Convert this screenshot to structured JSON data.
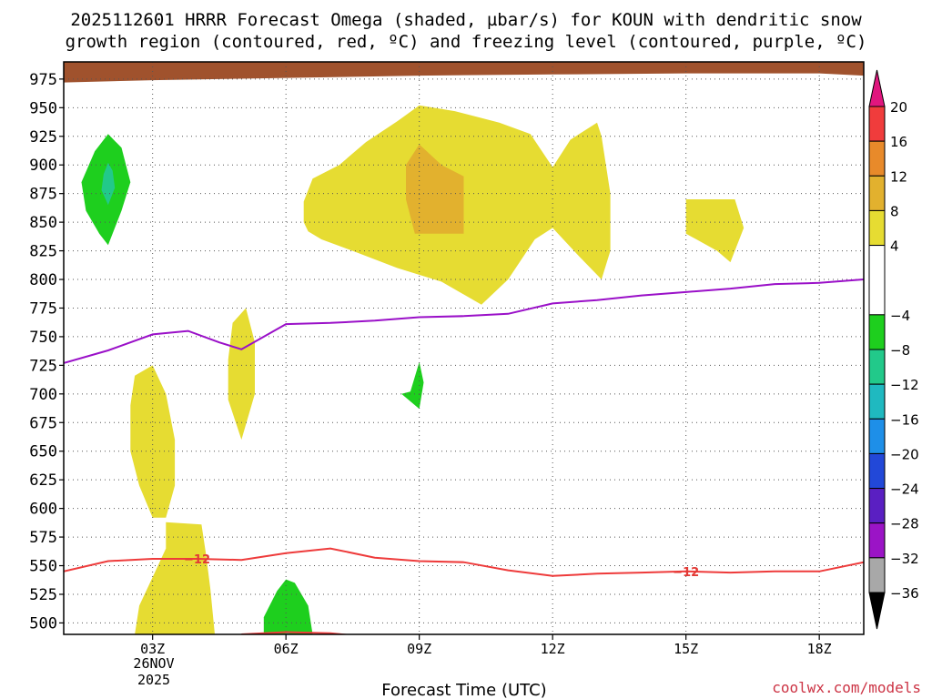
{
  "chart_data": {
    "type": "contour",
    "title_line1": "2025112601 HRRR Forecast Omega (shaded, µbar/s) for KOUN with dendritic snow",
    "title_line2": "growth region (contoured, red, ºC) and freezing level (contoured, purple, ºC)",
    "xlabel": "Forecast Time (UTC)",
    "credit": "coolwx.com/models",
    "x_unit": "hours since 00Z 26 Nov 2025",
    "xlim": [
      1.0,
      19.0
    ],
    "ylim": [
      990,
      490
    ],
    "x_ticks": [
      {
        "x": 3,
        "label": "03Z"
      },
      {
        "x": 6,
        "label": "06Z"
      },
      {
        "x": 9,
        "label": "09Z"
      },
      {
        "x": 12,
        "label": "12Z"
      },
      {
        "x": 15,
        "label": "15Z"
      },
      {
        "x": 18,
        "label": "18Z"
      }
    ],
    "date_label_line1": "26NOV",
    "date_label_line2": "2025",
    "y_ticks": [
      500,
      525,
      550,
      575,
      600,
      625,
      650,
      675,
      700,
      725,
      750,
      775,
      800,
      825,
      850,
      875,
      900,
      925,
      950,
      975
    ],
    "colorbar": {
      "label_values": [
        "20",
        "16",
        "12",
        "8",
        "4",
        "−4",
        "−8",
        "−12",
        "−16",
        "−20",
        "−24",
        "−28",
        "−32",
        "−36"
      ],
      "bands": [
        {
          "from": 16,
          "to": 20,
          "color": "#f03c3c"
        },
        {
          "from": 12,
          "to": 16,
          "color": "#e88a2a"
        },
        {
          "from": 8,
          "to": 12,
          "color": "#e2b12e"
        },
        {
          "from": 4,
          "to": 8,
          "color": "#e6dc32"
        },
        {
          "from": -4,
          "to": 4,
          "color": "#ffffff"
        },
        {
          "from": -8,
          "to": -4,
          "color": "#1ecf1e"
        },
        {
          "from": -12,
          "to": -8,
          "color": "#22c98a"
        },
        {
          "from": -16,
          "to": -12,
          "color": "#1fb9c0"
        },
        {
          "from": -20,
          "to": -16,
          "color": "#1e8fe8"
        },
        {
          "from": -24,
          "to": -20,
          "color": "#2248d8"
        },
        {
          "from": -28,
          "to": -24,
          "color": "#5a1fc2"
        },
        {
          "from": -32,
          "to": -28,
          "color": "#9b14c6"
        },
        {
          "from": -36,
          "to": -32,
          "color": "#a8a8a8"
        }
      ],
      "over_color": "#e0167e",
      "under_color": "#000000"
    },
    "isotherm_minus12": {
      "name": "dendritic growth -12 ºC",
      "color": "#ee3b3b",
      "label": "−12",
      "points": [
        [
          1.0,
          545
        ],
        [
          2.0,
          554
        ],
        [
          3.0,
          556
        ],
        [
          4.0,
          556
        ],
        [
          5.0,
          555
        ],
        [
          6.0,
          561
        ],
        [
          7.0,
          565
        ],
        [
          8.0,
          557
        ],
        [
          9.0,
          554
        ],
        [
          10.0,
          553
        ],
        [
          11.0,
          546
        ],
        [
          12.0,
          541
        ],
        [
          13.0,
          543
        ],
        [
          14.0,
          544
        ],
        [
          15.0,
          545
        ],
        [
          16.0,
          544
        ],
        [
          17.0,
          545
        ],
        [
          18.0,
          545
        ],
        [
          19.0,
          553
        ]
      ],
      "upper_segment": [
        [
          5.0,
          490
        ],
        [
          6.0,
          492
        ],
        [
          7.0,
          491
        ],
        [
          8.0,
          487
        ]
      ]
    },
    "freezing_level": {
      "name": "freezing level 0 ºC",
      "color": "#9a10c8",
      "points": [
        [
          1.0,
          727
        ],
        [
          2.0,
          738
        ],
        [
          3.0,
          752
        ],
        [
          3.8,
          755
        ],
        [
          4.5,
          745
        ],
        [
          5.0,
          739
        ],
        [
          6.0,
          761
        ],
        [
          7.0,
          762
        ],
        [
          8.0,
          764
        ],
        [
          9.0,
          767
        ],
        [
          10.0,
          768
        ],
        [
          11.0,
          770
        ],
        [
          12.0,
          779
        ],
        [
          13.0,
          782
        ],
        [
          14.0,
          786
        ],
        [
          15.0,
          789
        ],
        [
          16.0,
          792
        ],
        [
          17.0,
          796
        ],
        [
          18.0,
          797
        ],
        [
          19.0,
          800
        ]
      ]
    },
    "omega_regions": [
      {
        "name": "yellow column upper",
        "value_band": "4 to 8",
        "color": "#e6dc32",
        "points": [
          [
            2.6,
            490
          ],
          [
            4.4,
            490
          ],
          [
            4.3,
            530
          ],
          [
            4.2,
            560
          ],
          [
            4.1,
            586
          ],
          [
            3.3,
            588
          ],
          [
            3.3,
            565
          ],
          [
            3.0,
            540
          ],
          [
            2.7,
            515
          ]
        ]
      },
      {
        "name": "yellow mid left",
        "value_band": "4 to 8",
        "color": "#e6dc32",
        "points": [
          [
            3.0,
            592
          ],
          [
            3.3,
            592
          ],
          [
            3.5,
            620
          ],
          [
            3.5,
            660
          ],
          [
            3.3,
            700
          ],
          [
            3.0,
            725
          ],
          [
            2.6,
            716
          ],
          [
            2.5,
            690
          ],
          [
            2.5,
            650
          ],
          [
            2.7,
            620
          ]
        ]
      },
      {
        "name": "yellow mid center",
        "value_band": "4 to 8",
        "color": "#e6dc32",
        "points": [
          [
            5.0,
            660
          ],
          [
            5.3,
            700
          ],
          [
            5.3,
            745
          ],
          [
            5.1,
            775
          ],
          [
            4.8,
            762
          ],
          [
            4.7,
            730
          ],
          [
            4.7,
            695
          ]
        ]
      },
      {
        "name": "green 06Z top",
        "value_band": "-8 to -4",
        "color": "#1ecf1e",
        "points": [
          [
            5.5,
            490
          ],
          [
            6.6,
            490
          ],
          [
            6.5,
            515
          ],
          [
            6.2,
            535
          ],
          [
            6.0,
            538
          ],
          [
            5.8,
            528
          ],
          [
            5.5,
            505
          ]
        ]
      },
      {
        "name": "teal 06Z core",
        "value_band": "-12 to -8",
        "color": "#22c98a",
        "points": [
          [
            5.95,
            490
          ],
          [
            6.1,
            490
          ],
          [
            6.05,
            492
          ]
        ]
      },
      {
        "name": "green 09Z",
        "value_band": "-8 to -4",
        "color": "#1ecf1e",
        "points": [
          [
            9.0,
            687
          ],
          [
            9.1,
            710
          ],
          [
            9.0,
            728
          ],
          [
            8.8,
            702
          ],
          [
            8.6,
            700
          ]
        ]
      },
      {
        "name": "green left low",
        "value_band": "-8 to -4",
        "color": "#1ecf1e",
        "points": [
          [
            2.0,
            830
          ],
          [
            2.3,
            860
          ],
          [
            2.5,
            885
          ],
          [
            2.3,
            915
          ],
          [
            2.0,
            927
          ],
          [
            1.7,
            912
          ],
          [
            1.4,
            885
          ],
          [
            1.5,
            860
          ],
          [
            1.8,
            840
          ]
        ]
      },
      {
        "name": "teal left low",
        "value_band": "-12 to -8",
        "color": "#22c98a",
        "points": [
          [
            2.0,
            865
          ],
          [
            2.15,
            880
          ],
          [
            2.1,
            895
          ],
          [
            2.0,
            902
          ],
          [
            1.9,
            892
          ],
          [
            1.85,
            878
          ]
        ]
      },
      {
        "name": "yellow low big",
        "value_band": "4 to 8",
        "color": "#e6dc32",
        "points": [
          [
            6.5,
            842
          ],
          [
            6.8,
            835
          ],
          [
            7.5,
            825
          ],
          [
            8.5,
            810
          ],
          [
            9.5,
            798
          ],
          [
            10.4,
            778
          ],
          [
            11.0,
            800
          ],
          [
            11.6,
            835
          ],
          [
            12.0,
            845
          ],
          [
            12.6,
            820
          ],
          [
            13.1,
            800
          ],
          [
            13.3,
            825
          ],
          [
            13.3,
            875
          ],
          [
            13.1,
            925
          ],
          [
            13.0,
            937
          ],
          [
            12.4,
            922
          ],
          [
            12.0,
            898
          ],
          [
            11.5,
            927
          ],
          [
            10.8,
            937
          ],
          [
            9.8,
            947
          ],
          [
            9.0,
            952
          ],
          [
            8.5,
            938
          ],
          [
            7.8,
            920
          ],
          [
            7.2,
            900
          ],
          [
            6.6,
            888
          ],
          [
            6.4,
            868
          ],
          [
            6.4,
            850
          ]
        ]
      },
      {
        "name": "orange low",
        "value_band": "8 to 12",
        "color": "#e2b12e",
        "points": [
          [
            8.9,
            840
          ],
          [
            10.0,
            840
          ],
          [
            10.0,
            890
          ],
          [
            9.5,
            900
          ],
          [
            9.0,
            918
          ],
          [
            8.7,
            900
          ],
          [
            8.7,
            870
          ]
        ]
      },
      {
        "name": "yellow low right",
        "value_band": "4 to 8",
        "color": "#e6dc32",
        "points": [
          [
            15.0,
            840
          ],
          [
            15.7,
            825
          ],
          [
            16.0,
            815
          ],
          [
            16.3,
            845
          ],
          [
            16.1,
            870
          ],
          [
            15.8,
            870
          ],
          [
            15.0,
            870
          ]
        ]
      }
    ],
    "terrain": {
      "name": "ground",
      "color": "#a0522d",
      "points": [
        [
          1.0,
          972
        ],
        [
          3.0,
          974
        ],
        [
          6.0,
          976
        ],
        [
          9.0,
          978
        ],
        [
          12.0,
          979
        ],
        [
          15.0,
          980
        ],
        [
          18.0,
          980
        ],
        [
          19.0,
          978
        ]
      ]
    }
  }
}
